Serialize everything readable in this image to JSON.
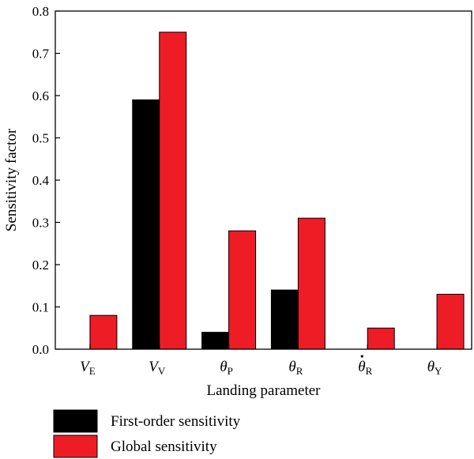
{
  "chart_data": {
    "type": "bar",
    "title": "",
    "xlabel": "Landing parameter",
    "ylabel": "Sensitivity factor",
    "ylim": [
      0,
      0.8
    ],
    "yticks": [
      "0.0",
      "0.1",
      "0.2",
      "0.3",
      "0.4",
      "0.5",
      "0.6",
      "0.7",
      "0.8"
    ],
    "categories": [
      {
        "main": "V",
        "sub": "E",
        "dot": false
      },
      {
        "main": "V",
        "sub": "V",
        "dot": false
      },
      {
        "main": "θ",
        "sub": "P",
        "dot": false
      },
      {
        "main": "θ",
        "sub": "R",
        "dot": false
      },
      {
        "main": "θ",
        "sub": "R",
        "dot": true
      },
      {
        "main": "θ",
        "sub": "Y",
        "dot": false
      }
    ],
    "series": [
      {
        "name": "First-order sensitivity",
        "color": "#000000",
        "values": [
          0,
          0.59,
          0.04,
          0.14,
          0,
          0
        ]
      },
      {
        "name": "Global sensitivity",
        "color": "#ee1c25",
        "values": [
          0.08,
          0.75,
          0.28,
          0.31,
          0.05,
          0.13
        ]
      }
    ],
    "legend_position": "bottom-left",
    "grid": false
  }
}
